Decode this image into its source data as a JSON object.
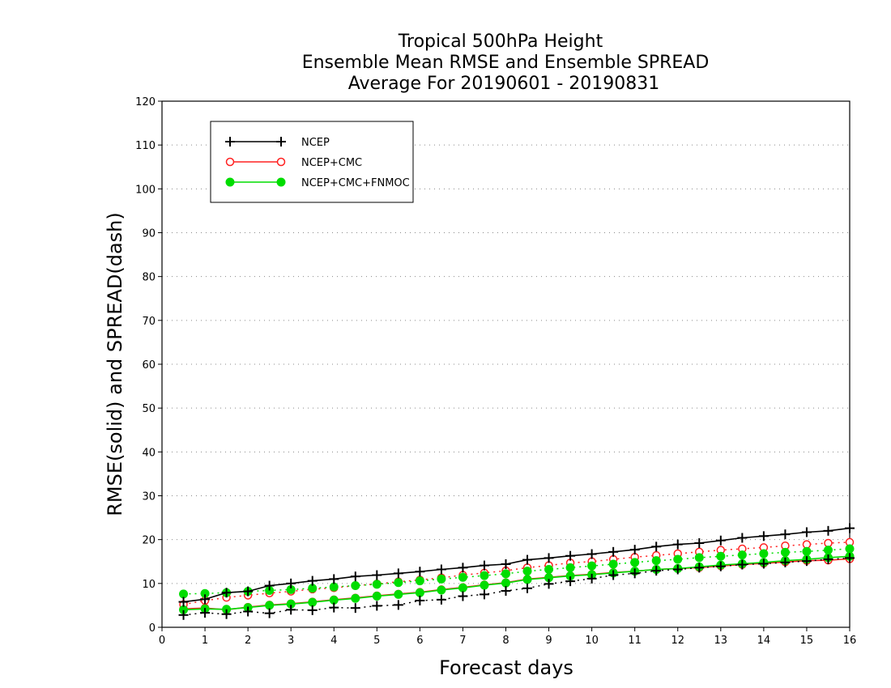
{
  "chart_data": {
    "type": "line",
    "title": [
      "Tropical 500hPa Height",
      "Ensemble Mean RMSE and Ensemble SPREAD",
      "Average For 20190601 - 20190831"
    ],
    "xlabel": "Forecast days",
    "ylabel": "RMSE(solid) and SPREAD(dash)",
    "xlim": [
      0,
      16
    ],
    "ylim": [
      0,
      120
    ],
    "xticks": [
      0,
      1,
      2,
      3,
      4,
      5,
      6,
      7,
      8,
      9,
      10,
      11,
      12,
      13,
      14,
      15,
      16
    ],
    "yticks": [
      0,
      10,
      20,
      30,
      40,
      50,
      60,
      70,
      80,
      90,
      100,
      110,
      120
    ],
    "grid": "horizontal dotted",
    "legend_position": "top-left",
    "x": [
      0.5,
      1,
      1.5,
      2,
      2.5,
      3,
      3.5,
      4,
      4.5,
      5,
      5.5,
      6,
      6.5,
      7,
      7.5,
      8,
      8.5,
      9,
      9.5,
      10,
      10.5,
      11,
      11.5,
      12,
      12.5,
      13,
      13.5,
      14,
      14.5,
      15,
      15.5,
      16
    ],
    "series": [
      {
        "name": "NCEP",
        "color": "#000000",
        "marker": "plus",
        "rmse": [
          5.8,
          6.4,
          7.9,
          8.2,
          9.5,
          10.0,
          10.6,
          11.0,
          11.6,
          11.9,
          12.3,
          12.7,
          13.2,
          13.6,
          14.1,
          14.4,
          15.4,
          15.8,
          16.3,
          16.7,
          17.2,
          17.7,
          18.4,
          18.9,
          19.2,
          19.8,
          20.4,
          20.8,
          21.2,
          21.7,
          22.0,
          22.6
        ],
        "spread": [
          2.8,
          3.3,
          3.0,
          3.6,
          3.2,
          4.0,
          3.9,
          4.5,
          4.4,
          4.9,
          5.1,
          6.1,
          6.3,
          7.1,
          7.5,
          8.3,
          8.9,
          9.9,
          10.5,
          11.1,
          11.9,
          12.3,
          12.9,
          13.2,
          13.6,
          13.9,
          14.3,
          14.5,
          14.8,
          15.1,
          15.5,
          15.8
        ]
      },
      {
        "name": "NCEP+CMC",
        "color": "#ff2020",
        "marker": "open-circle",
        "rmse": [
          4.2,
          4.4,
          4.0,
          4.6,
          5.1,
          5.4,
          5.8,
          6.3,
          6.7,
          7.2,
          7.6,
          8.0,
          8.6,
          9.1,
          9.7,
          10.2,
          11.0,
          11.4,
          11.8,
          12.1,
          12.5,
          12.8,
          13.2,
          13.4,
          13.6,
          14.0,
          14.3,
          14.6,
          14.9,
          15.2,
          15.3,
          15.6
        ],
        "spread": [
          5.2,
          6.1,
          6.8,
          7.3,
          7.8,
          8.2,
          8.7,
          9.0,
          9.5,
          9.9,
          10.4,
          10.8,
          11.3,
          11.9,
          12.4,
          12.9,
          13.6,
          14.1,
          14.7,
          15.0,
          15.5,
          16.0,
          16.4,
          16.8,
          17.2,
          17.6,
          17.9,
          18.2,
          18.6,
          18.9,
          19.2,
          19.4
        ]
      },
      {
        "name": "NCEP+CMC+FNMOC",
        "color": "#00dd00",
        "marker": "filled-circle",
        "rmse": [
          4.0,
          4.2,
          4.1,
          4.5,
          5.0,
          5.3,
          5.7,
          6.2,
          6.6,
          7.1,
          7.5,
          7.9,
          8.5,
          9.0,
          9.6,
          10.1,
          10.9,
          11.3,
          11.7,
          12.0,
          12.4,
          12.8,
          13.2,
          13.4,
          13.8,
          14.2,
          14.5,
          14.8,
          15.2,
          15.5,
          15.9,
          16.2
        ],
        "spread": [
          7.6,
          7.7,
          7.9,
          8.2,
          8.4,
          8.6,
          8.9,
          9.2,
          9.5,
          9.8,
          10.2,
          10.6,
          11.0,
          11.4,
          11.8,
          12.2,
          12.8,
          13.2,
          13.6,
          14.0,
          14.4,
          14.8,
          15.2,
          15.5,
          15.9,
          16.2,
          16.5,
          16.8,
          17.1,
          17.3,
          17.6,
          17.9
        ]
      }
    ]
  }
}
